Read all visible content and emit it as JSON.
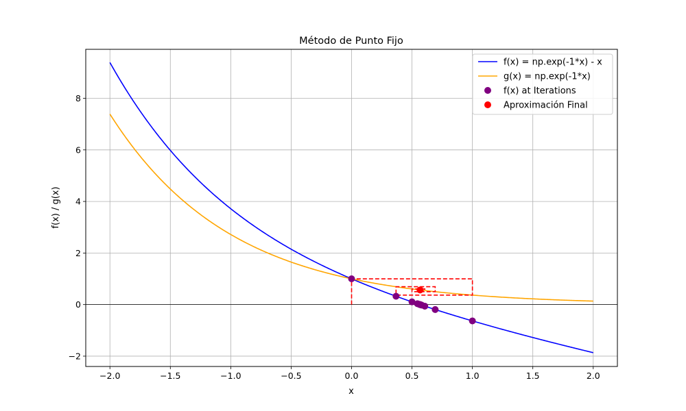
{
  "chart_data": {
    "type": "line",
    "title": "Método de Punto Fijo",
    "xlabel": "x",
    "ylabel": "f(x) / g(x)",
    "xlim": [
      -2.2,
      2.2
    ],
    "ylim": [
      -2.4,
      9.9
    ],
    "xticks": [
      -2.0,
      -1.5,
      -1.0,
      -0.5,
      0.0,
      0.5,
      1.0,
      1.5,
      2.0
    ],
    "xtick_labels": [
      "−2.0",
      "−1.5",
      "−1.0",
      "−0.5",
      "0.0",
      "0.5",
      "1.0",
      "1.5",
      "2.0"
    ],
    "yticks": [
      -2,
      0,
      2,
      4,
      6,
      8
    ],
    "ytick_labels": [
      "−2",
      "0",
      "2",
      "4",
      "6",
      "8"
    ],
    "grid": true,
    "legend_position": "top-right",
    "x_range": [
      -2,
      2
    ],
    "series": [
      {
        "name": "f(x) = np.exp(-1*x) - x",
        "function": "exp(-x) - x",
        "color": "#0000ff",
        "kind": "line"
      },
      {
        "name": "g(x) = np.exp(-1*x)",
        "function": "exp(-x)",
        "color": "#ffa500",
        "kind": "line"
      },
      {
        "name": "f(x) at Iterations",
        "color": "#800080",
        "kind": "scatter",
        "points": [
          [
            0,
            1.0
          ],
          [
            1.0,
            -0.632
          ],
          [
            0.368,
            0.324
          ],
          [
            0.692,
            -0.192
          ],
          [
            0.5,
            0.106
          ],
          [
            0.606,
            -0.061
          ],
          [
            0.545,
            0.035
          ],
          [
            0.58,
            -0.02
          ],
          [
            0.56,
            0.011
          ],
          [
            0.571,
            -0.006
          ],
          [
            0.565,
            0.004
          ],
          [
            0.568,
            -0.002
          ]
        ]
      },
      {
        "name": "Aproximación Final",
        "color": "#ff0000",
        "kind": "scatter",
        "points": [
          [
            0.567,
            0.567
          ]
        ]
      }
    ],
    "cobweb": {
      "color": "#ff0000",
      "style": "dashed",
      "points": [
        [
          0,
          0
        ],
        [
          0,
          1.0
        ],
        [
          1.0,
          1.0
        ],
        [
          1.0,
          0.368
        ],
        [
          0.368,
          0.368
        ],
        [
          0.368,
          0.692
        ],
        [
          0.692,
          0.692
        ],
        [
          0.692,
          0.5
        ],
        [
          0.5,
          0.5
        ],
        [
          0.5,
          0.606
        ],
        [
          0.606,
          0.606
        ],
        [
          0.606,
          0.545
        ],
        [
          0.545,
          0.545
        ],
        [
          0.545,
          0.58
        ],
        [
          0.58,
          0.58
        ],
        [
          0.58,
          0.56
        ],
        [
          0.56,
          0.56
        ],
        [
          0.56,
          0.571
        ],
        [
          0.571,
          0.571
        ],
        [
          0.571,
          0.565
        ],
        [
          0.565,
          0.565
        ],
        [
          0.565,
          0.568
        ],
        [
          0.568,
          0.568
        ]
      ]
    }
  }
}
